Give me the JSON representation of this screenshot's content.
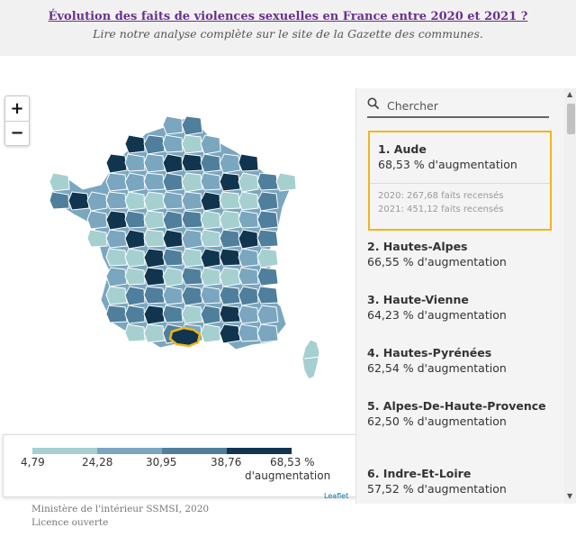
{
  "header": {
    "link": "Évolution des faits de violences sexuelles en France entre 2020 et 2021 ?",
    "subtitle": "Lire notre analyse complète sur le site de la Gazette des communes."
  },
  "zoom": {
    "in": "+",
    "out": "−"
  },
  "legend": {
    "labels": [
      "4,79",
      "24,28",
      "30,95",
      "38,76",
      "68,53 %"
    ],
    "unit": "d'augmentation",
    "colors": [
      "#a6cfd0",
      "#7aa6bf",
      "#4f7f9c",
      "#11354f"
    ]
  },
  "attribution": "Leaflet",
  "source": {
    "line1": "Ministère de l'intérieur SSMSI, 2020",
    "line2": "Licence ouverte"
  },
  "search": {
    "placeholder": "Chercher",
    "value": ""
  },
  "ranking": [
    {
      "title": "1. Aude",
      "value": "68,53 % d'augmentation",
      "detail1": "2020: 267,68 faits recensés",
      "detail2": "2021: 451,12 faits recensés"
    },
    {
      "title": "2. Hautes-Alpes",
      "value": "66,55 % d'augmentation"
    },
    {
      "title": "3. Haute-Vienne",
      "value": "64,23 % d'augmentation"
    },
    {
      "title": "4. Hautes-Pyrénées",
      "value": "62,54 % d'augmentation"
    },
    {
      "title": "5. Alpes-De-Haute-Provence",
      "value": "62,50 % d'augmentation"
    },
    {
      "title": "6. Indre-Et-Loire",
      "value": "57,52 % d'augmentation"
    }
  ],
  "map": {
    "highlight_color": "#f1b51c",
    "selected": "Aude"
  }
}
